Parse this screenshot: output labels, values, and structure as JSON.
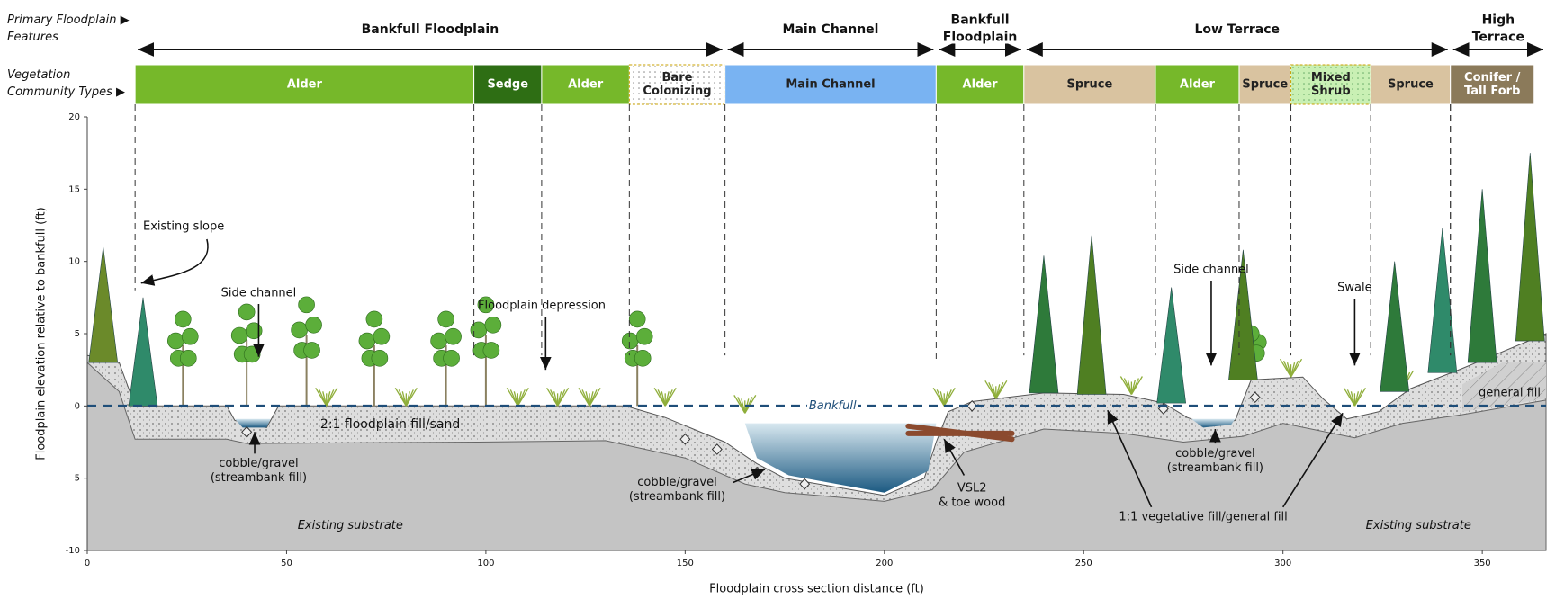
{
  "rows": {
    "features_label": [
      "Primary Floodplain ▶",
      "Features"
    ],
    "vegetation_label": [
      "Vegetation",
      "Community Types ▶"
    ]
  },
  "features": [
    "Bankfull Floodplain",
    "Main Channel",
    [
      "Bankfull",
      "Floodplain"
    ],
    "Low Terrace",
    [
      "High",
      "Terrace"
    ]
  ],
  "vegetation": [
    "Alder",
    "Sedge",
    "Alder",
    [
      "Bare",
      "Colonizing"
    ],
    "Main Channel",
    "Alder",
    "Spruce",
    "Alder",
    "Spruce",
    [
      "Mixed",
      "Shrub"
    ],
    "Spruce",
    [
      "Conifer /",
      "Tall Forb"
    ]
  ],
  "axes": {
    "y_title": "Floodplain elevation relative to bankfull (ft)",
    "x_title": "Floodplain cross section distance (ft)",
    "yticks": [
      -10,
      -5,
      0,
      5,
      10,
      15,
      20
    ],
    "xticks": [
      0,
      50,
      100,
      150,
      200,
      250,
      300,
      350
    ]
  },
  "annotations": {
    "existing_slope": "Existing slope",
    "side_channel_1": "Side channel",
    "floodplain_depression": "Floodplain depression",
    "bankfull": "Bankfull",
    "fill_sand": "2:1 floodplain fill/sand",
    "cobble_1": [
      "cobble/gravel",
      "(streambank fill)"
    ],
    "cobble_2": [
      "cobble/gravel",
      "(streambank fill)"
    ],
    "vsl2": [
      "VSL2",
      "& toe wood"
    ],
    "side_channel_2": "Side channel",
    "swale": "Swale",
    "cobble_3": [
      "cobble/gravel",
      "(streambank fill)"
    ],
    "general_fill": "general fill",
    "vegetative_fill": "1:1 vegetative fill/general fill",
    "substrate_1": "Existing substrate",
    "substrate_2": "Existing substrate"
  }
}
